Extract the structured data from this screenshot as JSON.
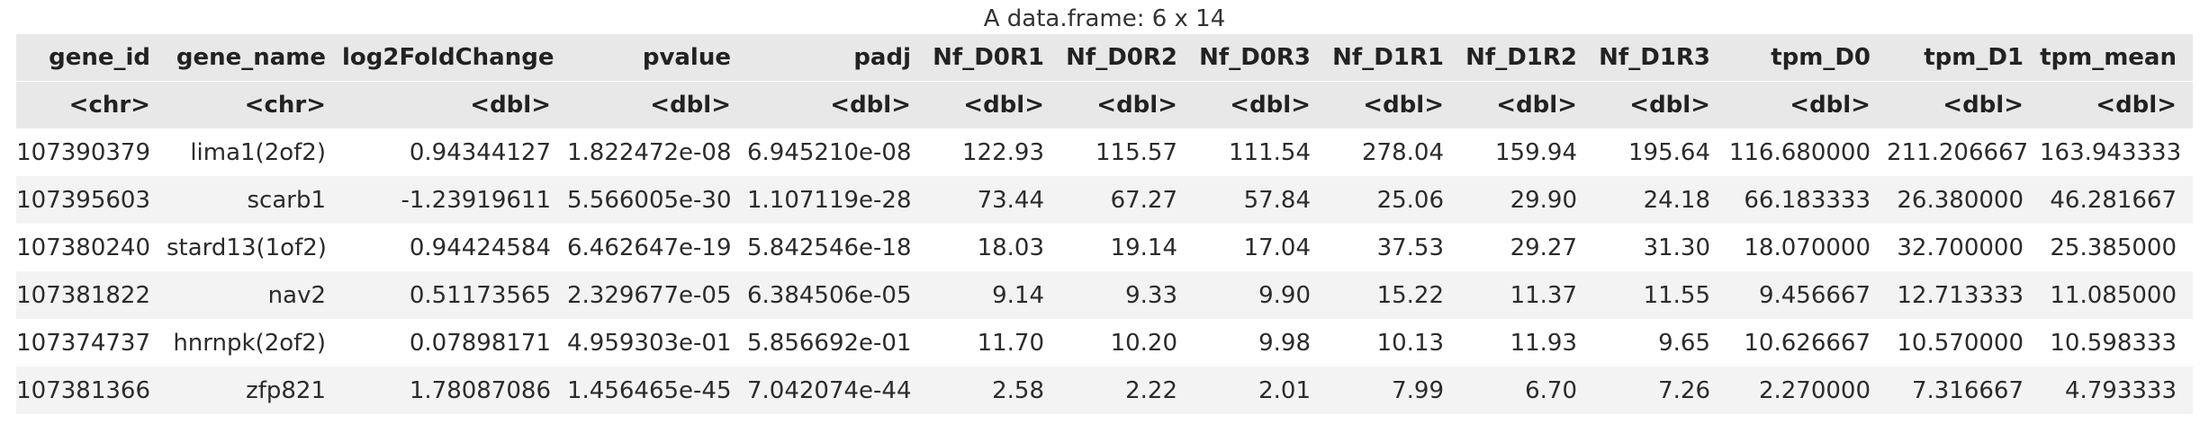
{
  "caption": "A data.frame: 6 x 14",
  "columns": [
    "gene_id",
    "gene_name",
    "log2FoldChange",
    "pvalue",
    "padj",
    "Nf_D0R1",
    "Nf_D0R2",
    "Nf_D0R3",
    "Nf_D1R1",
    "Nf_D1R2",
    "Nf_D1R3",
    "tpm_D0",
    "tpm_D1",
    "tpm_mean"
  ],
  "types": [
    "<chr>",
    "<chr>",
    "<dbl>",
    "<dbl>",
    "<dbl>",
    "<dbl>",
    "<dbl>",
    "<dbl>",
    "<dbl>",
    "<dbl>",
    "<dbl>",
    "<dbl>",
    "<dbl>",
    "<dbl>"
  ],
  "rows": [
    [
      "107390379",
      "lima1(2of2)",
      "0.94344127",
      "1.822472e-08",
      "6.945210e-08",
      "122.93",
      "115.57",
      "111.54",
      "278.04",
      "159.94",
      "195.64",
      "116.680000",
      "211.206667",
      "163.943333"
    ],
    [
      "107395603",
      "scarb1",
      "-1.23919611",
      "5.566005e-30",
      "1.107119e-28",
      "73.44",
      "67.27",
      "57.84",
      "25.06",
      "29.90",
      "24.18",
      "66.183333",
      "26.380000",
      "46.281667"
    ],
    [
      "107380240",
      "stard13(1of2)",
      "0.94424584",
      "6.462647e-19",
      "5.842546e-18",
      "18.03",
      "19.14",
      "17.04",
      "37.53",
      "29.27",
      "31.30",
      "18.070000",
      "32.700000",
      "25.385000"
    ],
    [
      "107381822",
      "nav2",
      "0.51173565",
      "2.329677e-05",
      "6.384506e-05",
      "9.14",
      "9.33",
      "9.90",
      "15.22",
      "11.37",
      "11.55",
      "9.456667",
      "12.713333",
      "11.085000"
    ],
    [
      "107374737",
      "hnrnpk(2of2)",
      "0.07898171",
      "4.959303e-01",
      "5.856692e-01",
      "11.70",
      "10.20",
      "9.98",
      "10.13",
      "11.93",
      "9.65",
      "10.626667",
      "10.570000",
      "10.598333"
    ],
    [
      "107381366",
      "zfp821",
      "1.78087086",
      "1.456465e-45",
      "7.042074e-44",
      "2.58",
      "2.22",
      "2.01",
      "7.99",
      "6.70",
      "7.26",
      "2.270000",
      "7.316667",
      "4.793333"
    ]
  ]
}
